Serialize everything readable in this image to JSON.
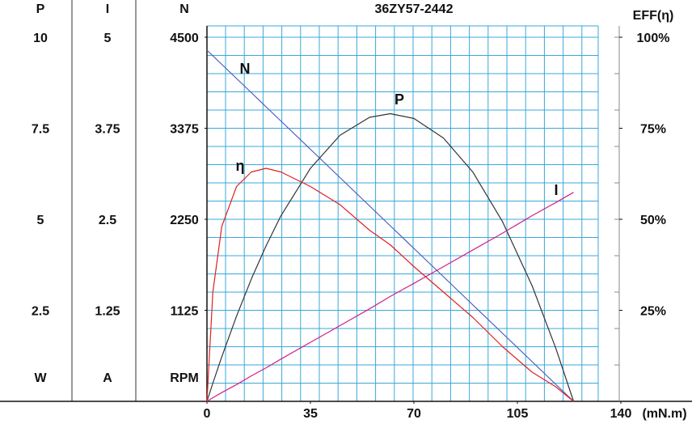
{
  "chart_data": {
    "type": "line",
    "title": "36ZY57-2442",
    "x_label": "(mN.m)",
    "xlim": [
      0,
      140
    ],
    "xticks": [
      0,
      35,
      70,
      105,
      140
    ],
    "grid": true,
    "axes": [
      {
        "name": "P",
        "unit": "W",
        "lim": [
          0,
          10
        ],
        "ticks": [
          2.5,
          5,
          7.5,
          10
        ]
      },
      {
        "name": "I",
        "unit": "A",
        "lim": [
          0,
          5
        ],
        "ticks": [
          1.25,
          2.5,
          3.75,
          5
        ]
      },
      {
        "name": "N",
        "unit": "RPM",
        "lim": [
          0,
          4500
        ],
        "ticks": [
          1125,
          2250,
          3375,
          4500
        ]
      },
      {
        "name": "EFF(η)",
        "lim": [
          0,
          100
        ],
        "ticks": [
          {
            "value": 25,
            "label": "25%"
          },
          {
            "value": 50,
            "label": "50%"
          },
          {
            "value": 75,
            "label": "75%"
          },
          {
            "value": 100,
            "label": "100%"
          }
        ]
      }
    ],
    "x": [
      0,
      2,
      5,
      10,
      15,
      20,
      25,
      35,
      45,
      55,
      62,
      70,
      80,
      90,
      100,
      110,
      118,
      124
    ],
    "series": [
      {
        "name": "N",
        "axis": 2,
        "color": "#4a5cc0",
        "values": [
          4340,
          4270,
          4165,
          3990,
          3815,
          3640,
          3465,
          3115,
          2765,
          2415,
          2170,
          1890,
          1540,
          1190,
          840,
          490,
          210,
          0
        ]
      },
      {
        "name": "P",
        "axis": 0,
        "color": "#333333",
        "values": [
          0,
          0.5,
          1.22,
          2.34,
          3.36,
          4.27,
          5.09,
          6.4,
          7.31,
          7.8,
          7.9,
          7.77,
          7.23,
          6.29,
          4.93,
          3.17,
          1.46,
          0
        ]
      },
      {
        "name": "η",
        "axis": 3,
        "color": "#e02020",
        "values": [
          0,
          30,
          48,
          59,
          63,
          64,
          63,
          59,
          54,
          47,
          43,
          37,
          30,
          23,
          15,
          8,
          4,
          0
        ]
      },
      {
        "name": "I",
        "axis": 1,
        "color": "#d0208a",
        "values": [
          0,
          0.05,
          0.12,
          0.23,
          0.35,
          0.46,
          0.58,
          0.81,
          1.04,
          1.27,
          1.44,
          1.62,
          1.85,
          2.08,
          2.31,
          2.55,
          2.73,
          2.87
        ]
      }
    ]
  }
}
